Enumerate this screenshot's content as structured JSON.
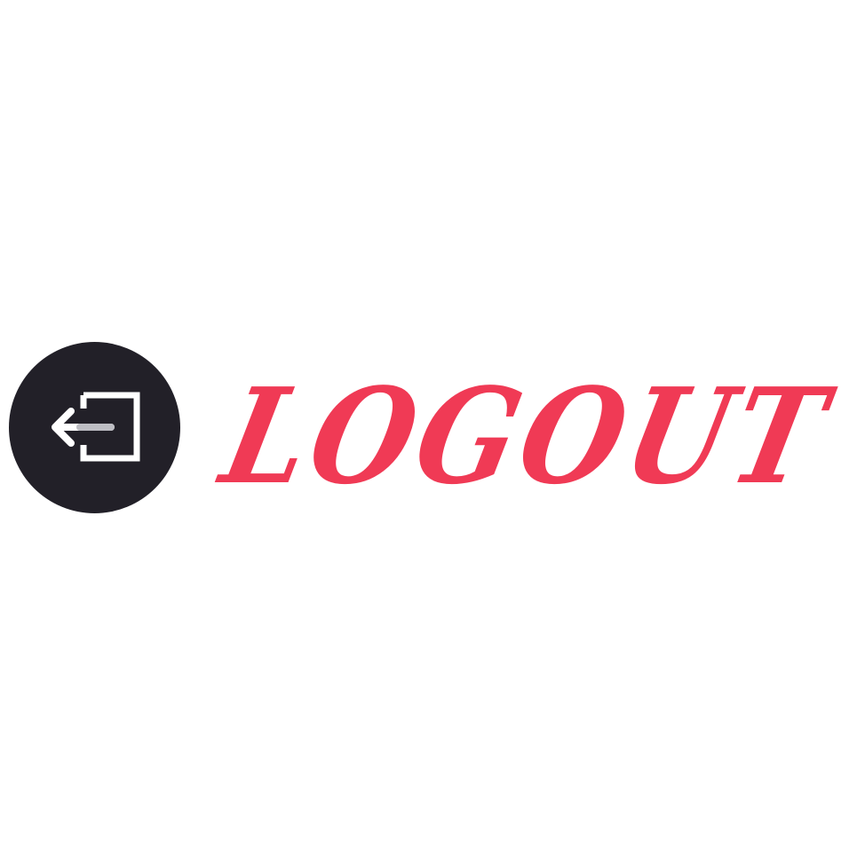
{
  "logout": {
    "label": "LOGOUT",
    "icon": "logout-arrow-icon",
    "text_color": "#f03a55",
    "icon_background": "#222028",
    "icon_color": "#ffffff"
  }
}
